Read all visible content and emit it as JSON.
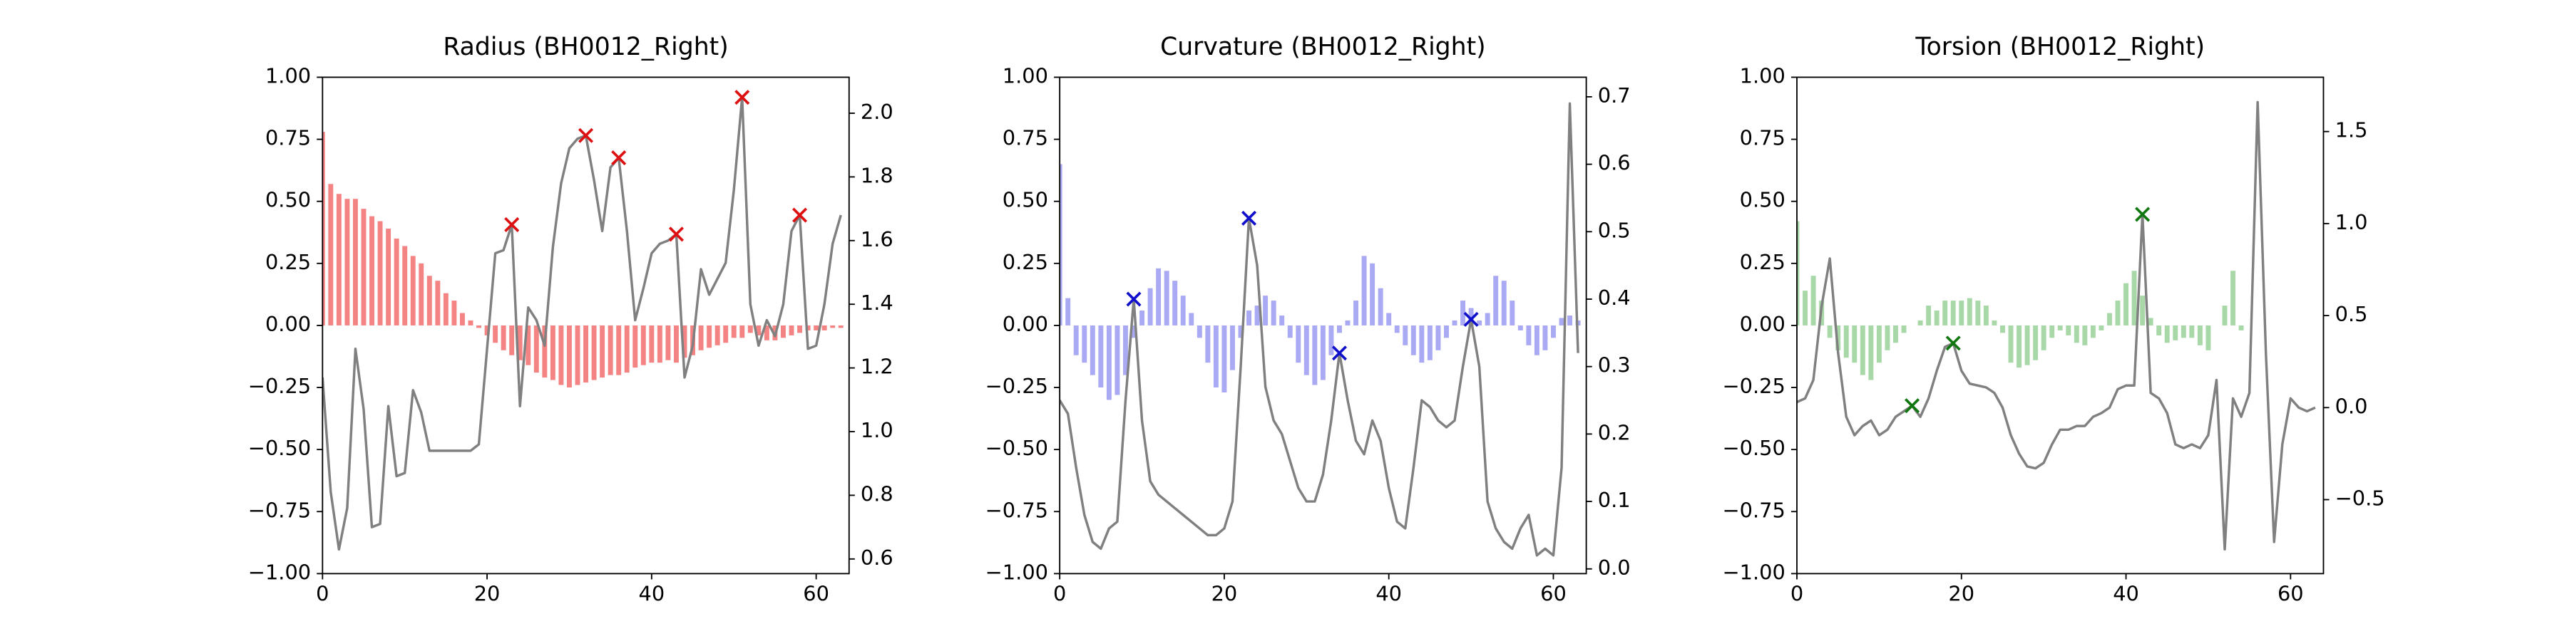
{
  "chart_data": [
    {
      "type": "bar",
      "title": "Radius (BH0012_Right)",
      "x": [
        0,
        1,
        2,
        3,
        4,
        5,
        6,
        7,
        8,
        9,
        10,
        11,
        12,
        13,
        14,
        15,
        16,
        17,
        18,
        19,
        20,
        21,
        22,
        23,
        24,
        25,
        26,
        27,
        28,
        29,
        30,
        31,
        32,
        33,
        34,
        35,
        36,
        37,
        38,
        39,
        40,
        41,
        42,
        43,
        44,
        45,
        46,
        47,
        48,
        49,
        50,
        51,
        52,
        53,
        54,
        55,
        56,
        57,
        58,
        59,
        60,
        61,
        62,
        63
      ],
      "xlim": [
        0,
        64
      ],
      "xticks": [
        0,
        20,
        40,
        60
      ],
      "ylim": [
        -1,
        1
      ],
      "yticks": [
        {
          "value": -1,
          "label": "−1.00"
        },
        {
          "value": -0.75,
          "label": "−0.75"
        },
        {
          "value": -0.5,
          "label": "−0.50"
        },
        {
          "value": -0.25,
          "label": "−0.25"
        },
        {
          "value": 0,
          "label": "0.00"
        },
        {
          "value": 0.25,
          "label": "0.25"
        },
        {
          "value": 0.5,
          "label": "0.50"
        },
        {
          "value": 0.75,
          "label": "0.75"
        },
        {
          "value": 1,
          "label": "1.00"
        }
      ],
      "y2lim": [
        0.554,
        2.113
      ],
      "y2ticks": [
        0.6,
        0.8,
        {
          "value": 1,
          "label": "1.0"
        },
        1.2,
        1.4,
        1.6,
        1.8,
        {
          "value": 2,
          "label": "2.0"
        }
      ],
      "series": [
        {
          "type": "bar",
          "color": "#f48484",
          "values": [
            0.78,
            0.57,
            0.53,
            0.51,
            0.51,
            0.47,
            0.44,
            0.42,
            0.39,
            0.35,
            0.32,
            0.28,
            0.25,
            0.2,
            0.18,
            0.13,
            0.1,
            0.05,
            0.02,
            -0.01,
            -0.04,
            -0.07,
            -0.1,
            -0.12,
            -0.14,
            -0.16,
            -0.19,
            -0.21,
            -0.22,
            -0.24,
            -0.25,
            -0.24,
            -0.23,
            -0.22,
            -0.21,
            -0.2,
            -0.2,
            -0.19,
            -0.17,
            -0.16,
            -0.15,
            -0.15,
            -0.14,
            -0.15,
            -0.13,
            -0.12,
            -0.1,
            -0.09,
            -0.08,
            -0.07,
            -0.05,
            -0.05,
            -0.03,
            -0.04,
            -0.06,
            -0.06,
            -0.05,
            -0.04,
            -0.03,
            -0.02,
            -0.02,
            -0.02,
            -0.01,
            -0.01
          ]
        },
        {
          "type": "line",
          "axis": "y2",
          "color": "#808080",
          "values": [
            1.17,
            0.81,
            0.63,
            0.76,
            1.26,
            1.07,
            0.7,
            0.71,
            1.08,
            0.86,
            0.87,
            1.13,
            1.06,
            0.94,
            0.94,
            0.94,
            0.94,
            0.94,
            0.94,
            0.96,
            1.26,
            1.56,
            1.57,
            1.65,
            1.08,
            1.39,
            1.35,
            1.27,
            1.58,
            1.78,
            1.89,
            1.92,
            1.93,
            1.79,
            1.63,
            1.83,
            1.86,
            1.63,
            1.35,
            1.45,
            1.56,
            1.59,
            1.6,
            1.62,
            1.17,
            1.27,
            1.51,
            1.43,
            1.48,
            1.53,
            1.76,
            2.05,
            1.4,
            1.27,
            1.35,
            1.3,
            1.4,
            1.63,
            1.68,
            1.26,
            1.27,
            1.4,
            1.59,
            1.68
          ]
        },
        {
          "type": "scatter",
          "marker": "x",
          "axis": "y2",
          "color": "#dd1111",
          "x": [
            23,
            32,
            36,
            43,
            51,
            58
          ],
          "values": [
            1.65,
            1.93,
            1.86,
            1.62,
            2.05,
            1.68
          ]
        }
      ]
    },
    {
      "type": "bar",
      "title": "Curvature (BH0012_Right)",
      "x": [
        0,
        1,
        2,
        3,
        4,
        5,
        6,
        7,
        8,
        9,
        10,
        11,
        12,
        13,
        14,
        15,
        16,
        17,
        18,
        19,
        20,
        21,
        22,
        23,
        24,
        25,
        26,
        27,
        28,
        29,
        30,
        31,
        32,
        33,
        34,
        35,
        36,
        37,
        38,
        39,
        40,
        41,
        42,
        43,
        44,
        45,
        46,
        47,
        48,
        49,
        50,
        51,
        52,
        53,
        54,
        55,
        56,
        57,
        58,
        59,
        60,
        61,
        62,
        63
      ],
      "xlim": [
        0,
        64
      ],
      "xticks": [
        0,
        20,
        40,
        60
      ],
      "ylim": [
        -1,
        1
      ],
      "yticks": [
        {
          "value": -1,
          "label": "−1.00"
        },
        {
          "value": -0.75,
          "label": "−0.75"
        },
        {
          "value": -0.5,
          "label": "−0.50"
        },
        {
          "value": -0.25,
          "label": "−0.25"
        },
        {
          "value": 0,
          "label": "0.00"
        },
        {
          "value": 0.25,
          "label": "0.25"
        },
        {
          "value": 0.5,
          "label": "0.50"
        },
        {
          "value": 0.75,
          "label": "0.75"
        },
        {
          "value": 1,
          "label": "1.00"
        }
      ],
      "y2lim": [
        -0.007,
        0.729
      ],
      "y2ticks": [
        {
          "value": 0,
          "label": "0.0"
        },
        0.1,
        0.2,
        0.3,
        0.4,
        0.5,
        0.6,
        0.7
      ],
      "series": [
        {
          "type": "bar",
          "color": "#a9a9f4",
          "values": [
            0.65,
            0.11,
            -0.12,
            -0.15,
            -0.2,
            -0.25,
            -0.3,
            -0.28,
            -0.2,
            -0.05,
            0.06,
            0.15,
            0.23,
            0.22,
            0.18,
            0.12,
            0.05,
            -0.05,
            -0.15,
            -0.25,
            -0.27,
            -0.18,
            -0.05,
            0.06,
            0.08,
            0.12,
            0.1,
            0.04,
            -0.05,
            -0.15,
            -0.2,
            -0.24,
            -0.22,
            -0.12,
            -0.03,
            0.02,
            0.1,
            0.28,
            0.25,
            0.15,
            0.05,
            -0.03,
            -0.08,
            -0.12,
            -0.15,
            -0.14,
            -0.1,
            -0.05,
            0.02,
            0.1,
            0.07,
            0.02,
            0.05,
            0.2,
            0.18,
            0.1,
            -0.02,
            -0.08,
            -0.12,
            -0.1,
            -0.05,
            0.03,
            0.04,
            0.02
          ]
        },
        {
          "type": "line",
          "axis": "y2",
          "color": "#808080",
          "values": [
            0.25,
            0.23,
            0.15,
            0.08,
            0.04,
            0.03,
            0.06,
            0.07,
            0.25,
            0.4,
            0.22,
            0.13,
            0.11,
            0.1,
            0.09,
            0.08,
            0.07,
            0.06,
            0.05,
            0.05,
            0.06,
            0.1,
            0.3,
            0.52,
            0.45,
            0.27,
            0.22,
            0.2,
            0.16,
            0.12,
            0.1,
            0.1,
            0.14,
            0.22,
            0.32,
            0.25,
            0.19,
            0.17,
            0.22,
            0.19,
            0.12,
            0.07,
            0.06,
            0.15,
            0.25,
            0.24,
            0.22,
            0.21,
            0.22,
            0.3,
            0.37,
            0.3,
            0.1,
            0.06,
            0.04,
            0.03,
            0.06,
            0.08,
            0.02,
            0.03,
            0.02,
            0.15,
            0.69,
            0.32
          ]
        },
        {
          "type": "scatter",
          "marker": "x",
          "axis": "y2",
          "color": "#1111cc",
          "x": [
            9,
            23,
            34,
            50
          ],
          "values": [
            0.4,
            0.52,
            0.32,
            0.37
          ]
        }
      ]
    },
    {
      "type": "bar",
      "title": "Torsion (BH0012_Right)",
      "x": [
        0,
        1,
        2,
        3,
        4,
        5,
        6,
        7,
        8,
        9,
        10,
        11,
        12,
        13,
        14,
        15,
        16,
        17,
        18,
        19,
        20,
        21,
        22,
        23,
        24,
        25,
        26,
        27,
        28,
        29,
        30,
        31,
        32,
        33,
        34,
        35,
        36,
        37,
        38,
        39,
        40,
        41,
        42,
        43,
        44,
        45,
        46,
        47,
        48,
        49,
        50,
        51,
        52,
        53,
        54,
        55,
        56,
        57,
        58,
        59,
        60,
        61,
        62,
        63
      ],
      "xlim": [
        0,
        64
      ],
      "xticks": [
        0,
        20,
        40,
        60
      ],
      "ylim": [
        -1,
        1
      ],
      "yticks": [
        {
          "value": -1,
          "label": "−1.00"
        },
        {
          "value": -0.75,
          "label": "−0.75"
        },
        {
          "value": -0.5,
          "label": "−0.50"
        },
        {
          "value": -0.25,
          "label": "−0.25"
        },
        {
          "value": 0,
          "label": "0.00"
        },
        {
          "value": 0.25,
          "label": "0.25"
        },
        {
          "value": 0.5,
          "label": "0.50"
        },
        {
          "value": 0.75,
          "label": "0.75"
        },
        {
          "value": 1,
          "label": "1.00"
        }
      ],
      "y2lim": [
        -0.902,
        1.795
      ],
      "y2ticks": [
        {
          "value": -0.5,
          "label": "−0.5"
        },
        {
          "value": 0,
          "label": "0.0"
        },
        0.5,
        {
          "value": 1,
          "label": "1.0"
        },
        1.5
      ],
      "series": [
        {
          "type": "bar",
          "color": "#a8d8a8",
          "values": [
            0.42,
            0.14,
            0.2,
            0.1,
            -0.05,
            -0.1,
            -0.13,
            -0.15,
            -0.2,
            -0.22,
            -0.15,
            -0.1,
            -0.07,
            -0.03,
            0,
            0.02,
            0.08,
            0.06,
            0.1,
            0.1,
            0.1,
            0.11,
            0.1,
            0.08,
            0.02,
            -0.03,
            -0.15,
            -0.17,
            -0.16,
            -0.14,
            -0.1,
            -0.05,
            -0.02,
            -0.04,
            -0.07,
            -0.08,
            -0.05,
            -0.02,
            0.05,
            0.1,
            0.17,
            0.22,
            0.12,
            0.03,
            -0.04,
            -0.07,
            -0.06,
            -0.05,
            -0.05,
            -0.08,
            -0.1,
            0,
            0.08,
            0.22,
            -0.02,
            0,
            0,
            0,
            0,
            0,
            0,
            0,
            0,
            0
          ]
        },
        {
          "type": "line",
          "axis": "y2",
          "color": "#808080",
          "values": [
            0.03,
            0.05,
            0.15,
            0.55,
            0.81,
            0.3,
            -0.05,
            -0.15,
            -0.1,
            -0.07,
            -0.15,
            -0.12,
            -0.05,
            -0.02,
            0.01,
            -0.05,
            0.05,
            0.2,
            0.33,
            0.35,
            0.2,
            0.13,
            0.12,
            0.11,
            0.08,
            0,
            -0.15,
            -0.25,
            -0.32,
            -0.33,
            -0.3,
            -0.2,
            -0.12,
            -0.12,
            -0.1,
            -0.1,
            -0.05,
            -0.03,
            0,
            0.1,
            0.12,
            0.12,
            1.05,
            0.08,
            0.05,
            -0.03,
            -0.2,
            -0.22,
            -0.2,
            -0.22,
            -0.15,
            0.15,
            -0.77,
            0.05,
            -0.05,
            0.08,
            1.66,
            0.3,
            -0.73,
            -0.2,
            0.05,
            0,
            -0.02,
            0
          ]
        },
        {
          "type": "scatter",
          "marker": "x",
          "axis": "y2",
          "color": "#117711",
          "x": [
            14,
            19,
            42
          ],
          "values": [
            0.01,
            0.35,
            1.05
          ]
        }
      ]
    }
  ]
}
